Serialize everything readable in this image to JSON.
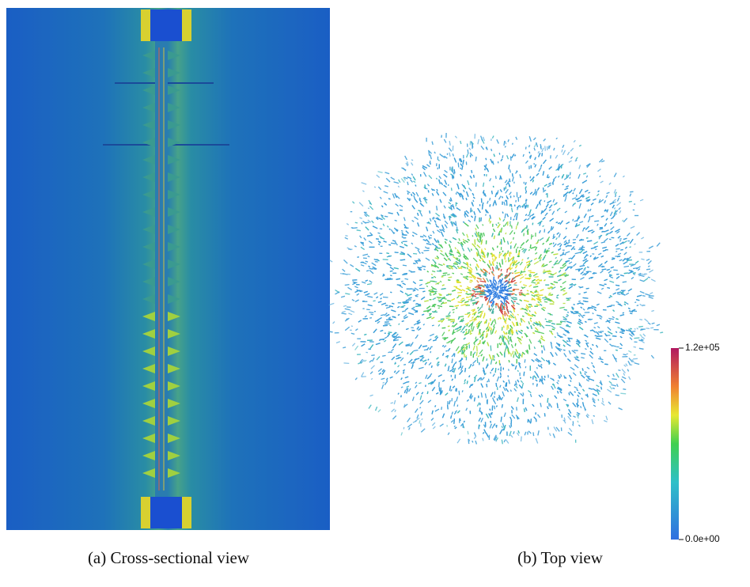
{
  "figure": {
    "subfigures": [
      {
        "caption": "(a) Cross-sectional view"
      },
      {
        "caption": "(b) Top view"
      }
    ],
    "colorbar": {
      "max_label": "1.2e+05",
      "min_label": "0.0e+00"
    }
  }
}
